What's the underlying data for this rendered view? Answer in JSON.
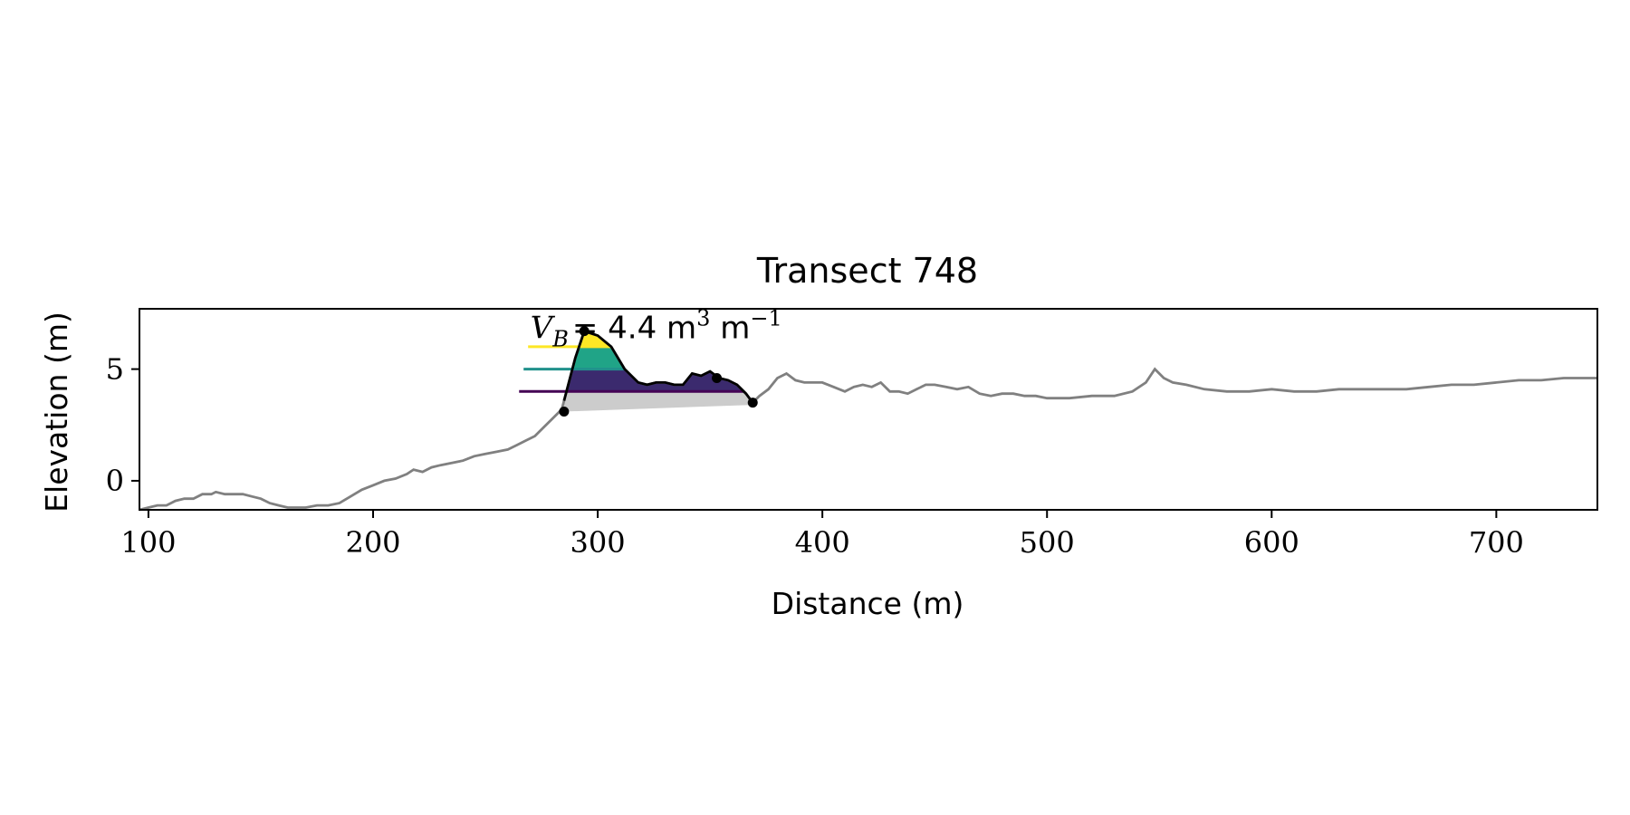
{
  "chart_data": {
    "type": "line",
    "title": "Transect 748",
    "xlabel": "Distance (m)",
    "ylabel": "Elevation (m)",
    "xlim": [
      96,
      745
    ],
    "ylim": [
      -1.3,
      7.7
    ],
    "xticks": [
      100,
      200,
      300,
      400,
      500,
      600,
      700
    ],
    "yticks": [
      0,
      5
    ],
    "grid": false,
    "annotation": {
      "symbol": "V",
      "subscript": "B",
      "text": "= 4.4 m",
      "unit_exp1": "3",
      "unit_mid": " m",
      "unit_exp2": "−1",
      "x": 270,
      "y": 6.7
    },
    "profile": {
      "color": "#808080",
      "points": [
        [
          96,
          -1.3
        ],
        [
          100,
          -1.2
        ],
        [
          104,
          -1.1
        ],
        [
          108,
          -1.1
        ],
        [
          112,
          -0.9
        ],
        [
          116,
          -0.8
        ],
        [
          120,
          -0.8
        ],
        [
          124,
          -0.6
        ],
        [
          128,
          -0.6
        ],
        [
          130,
          -0.5
        ],
        [
          134,
          -0.6
        ],
        [
          138,
          -0.6
        ],
        [
          142,
          -0.6
        ],
        [
          146,
          -0.7
        ],
        [
          150,
          -0.8
        ],
        [
          154,
          -1.0
        ],
        [
          158,
          -1.1
        ],
        [
          162,
          -1.2
        ],
        [
          166,
          -1.2
        ],
        [
          170,
          -1.2
        ],
        [
          175,
          -1.1
        ],
        [
          180,
          -1.1
        ],
        [
          185,
          -1.0
        ],
        [
          190,
          -0.7
        ],
        [
          195,
          -0.4
        ],
        [
          200,
          -0.2
        ],
        [
          205,
          0.0
        ],
        [
          210,
          0.1
        ],
        [
          215,
          0.3
        ],
        [
          218,
          0.5
        ],
        [
          222,
          0.4
        ],
        [
          226,
          0.6
        ],
        [
          230,
          0.7
        ],
        [
          235,
          0.8
        ],
        [
          240,
          0.9
        ],
        [
          245,
          1.1
        ],
        [
          250,
          1.2
        ],
        [
          255,
          1.3
        ],
        [
          260,
          1.4
        ],
        [
          264,
          1.6
        ],
        [
          268,
          1.8
        ],
        [
          272,
          2.0
        ],
        [
          276,
          2.4
        ],
        [
          280,
          2.8
        ],
        [
          284,
          3.2
        ],
        [
          290,
          5.5
        ],
        [
          294,
          6.7
        ],
        [
          300,
          6.5
        ],
        [
          306,
          6.0
        ],
        [
          312,
          5.0
        ],
        [
          318,
          4.4
        ],
        [
          322,
          4.3
        ],
        [
          326,
          4.4
        ],
        [
          330,
          4.4
        ],
        [
          334,
          4.3
        ],
        [
          338,
          4.3
        ],
        [
          342,
          4.8
        ],
        [
          346,
          4.7
        ],
        [
          350,
          4.9
        ],
        [
          354,
          4.6
        ],
        [
          358,
          4.5
        ],
        [
          362,
          4.3
        ],
        [
          366,
          3.9
        ],
        [
          369,
          3.5
        ],
        [
          372,
          3.8
        ],
        [
          376,
          4.1
        ],
        [
          380,
          4.6
        ],
        [
          384,
          4.8
        ],
        [
          388,
          4.5
        ],
        [
          392,
          4.4
        ],
        [
          396,
          4.4
        ],
        [
          400,
          4.4
        ],
        [
          405,
          4.2
        ],
        [
          410,
          4.0
        ],
        [
          414,
          4.2
        ],
        [
          418,
          4.3
        ],
        [
          422,
          4.2
        ],
        [
          426,
          4.4
        ],
        [
          430,
          4.0
        ],
        [
          434,
          4.0
        ],
        [
          438,
          3.9
        ],
        [
          442,
          4.1
        ],
        [
          446,
          4.3
        ],
        [
          450,
          4.3
        ],
        [
          455,
          4.2
        ],
        [
          460,
          4.1
        ],
        [
          465,
          4.2
        ],
        [
          470,
          3.9
        ],
        [
          475,
          3.8
        ],
        [
          480,
          3.9
        ],
        [
          485,
          3.9
        ],
        [
          490,
          3.8
        ],
        [
          495,
          3.8
        ],
        [
          500,
          3.7
        ],
        [
          510,
          3.7
        ],
        [
          520,
          3.8
        ],
        [
          530,
          3.8
        ],
        [
          538,
          4.0
        ],
        [
          544,
          4.4
        ],
        [
          548,
          5.0
        ],
        [
          552,
          4.6
        ],
        [
          556,
          4.4
        ],
        [
          562,
          4.3
        ],
        [
          570,
          4.1
        ],
        [
          580,
          4.0
        ],
        [
          590,
          4.0
        ],
        [
          600,
          4.1
        ],
        [
          610,
          4.0
        ],
        [
          620,
          4.0
        ],
        [
          630,
          4.1
        ],
        [
          640,
          4.1
        ],
        [
          650,
          4.1
        ],
        [
          660,
          4.1
        ],
        [
          670,
          4.2
        ],
        [
          680,
          4.3
        ],
        [
          690,
          4.3
        ],
        [
          700,
          4.4
        ],
        [
          710,
          4.5
        ],
        [
          720,
          4.5
        ],
        [
          730,
          4.6
        ],
        [
          745,
          4.6
        ]
      ]
    },
    "fill_base": {
      "color": "#cccccc",
      "low": [
        [
          285,
          3.1
        ],
        [
          369,
          3.4
        ]
      ]
    },
    "levels": [
      {
        "y": 4.0,
        "x_start": 265,
        "color": "#440154"
      },
      {
        "y": 5.0,
        "x_start": 267,
        "color": "#21918c"
      },
      {
        "y": 6.0,
        "x_start": 269,
        "color": "#fde725"
      }
    ],
    "band_colors": [
      "#3b2a6e",
      "#20a487",
      "#fde725"
    ],
    "highlight": {
      "color": "#000000",
      "x_range": [
        285,
        369
      ],
      "markers": [
        [
          285,
          3.1
        ],
        [
          294,
          6.7
        ],
        [
          353,
          4.6
        ],
        [
          369,
          3.5
        ]
      ]
    }
  }
}
